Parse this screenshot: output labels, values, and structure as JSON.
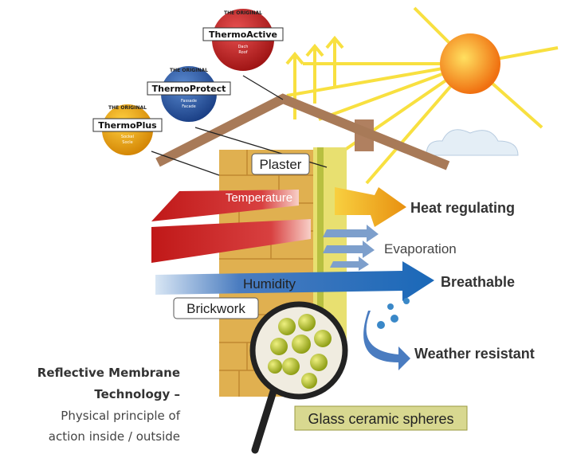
{
  "badges": [
    {
      "tagline": "THE ORIGINAL",
      "name": "ThermoActive",
      "sub": [
        "Dach",
        "Roof"
      ]
    },
    {
      "tagline": "THE ORIGINAL",
      "name": "ThermoProtect",
      "sub": [
        "Fassade",
        "Facade"
      ]
    },
    {
      "tagline": "THE ORIGINAL",
      "name": "ThermoPlus",
      "sub": [
        "Sockel",
        "Socle"
      ]
    }
  ],
  "labels": {
    "plaster": "Plaster",
    "temperature": "Temperature",
    "heat": "Heat regulating",
    "evaporation": "Evaporation",
    "humidity": "Humidity",
    "breathable": "Breathable",
    "brickwork": "Brickwork",
    "weather": "Weather resistant",
    "spheres": "Glass ceramic spheres"
  },
  "caption": {
    "title": [
      "Reflective Membrane",
      "Technology –"
    ],
    "text": [
      "Physical principle of",
      "action inside / outside"
    ]
  }
}
